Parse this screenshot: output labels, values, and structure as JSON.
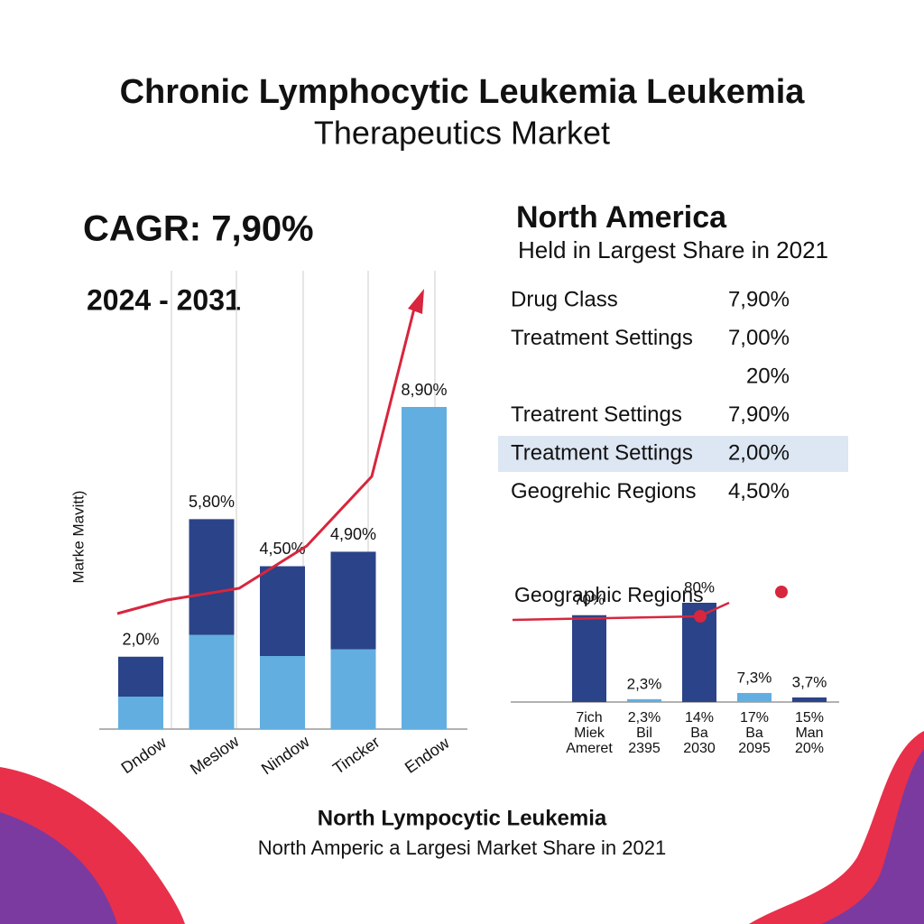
{
  "header": {
    "title": [
      "Chronic Lymphocytic Leukemia Leukemia",
      "Therapeutics Market"
    ]
  },
  "cagr": {
    "label": "CAGR: 7,90%",
    "period": "2024 - 2031"
  },
  "region": {
    "title": "North America",
    "subtitle": "Held in Largest Share in 2021"
  },
  "table": {
    "highlight": 4,
    "rows": [
      {
        "label": "Drug Class",
        "value": "7,90%"
      },
      {
        "label": "Treatment Settings",
        "value": "7,00%"
      },
      {
        "value": "20%"
      },
      {
        "label": "Treatrent Settings",
        "value": "7,90%"
      },
      {
        "label": "Treatment Settings",
        "value": "2,00%"
      },
      {
        "label": "Geogrehic Regions",
        "value": "4,50%"
      }
    ]
  },
  "chart_data": [
    {
      "type": "bar",
      "y_label": "Marke Mavitt)",
      "categories": [
        "Dndow",
        "Meslow",
        "Nindow",
        "Tincker",
        "Endow"
      ],
      "values": [
        2.0,
        5.8,
        4.5,
        4.9,
        8.9
      ],
      "value_labels": [
        "2,0%",
        "5,80%",
        "4,50%",
        "4,90%",
        "8,90%"
      ],
      "colors": [
        "#2b4388",
        "#2b4388",
        "#2b4388",
        "#2b4388",
        "#62aee0"
      ],
      "lower_color": "#62aee0"
    },
    {
      "type": "bar",
      "title": "Geographic Regions",
      "categories": [
        [
          "7ich",
          "Miek",
          "Ameret"
        ],
        [
          "2,3%",
          "Bil",
          "2395"
        ],
        [
          "14%",
          "Ba",
          "2030"
        ],
        [
          "17%",
          "Ba",
          "2095"
        ],
        [
          "15%",
          "Man",
          "20%"
        ]
      ],
      "values": [
        70,
        2.3,
        80,
        7.3,
        3.7
      ],
      "value_labels": [
        "70%",
        "2,3%",
        "80%",
        "7,3%",
        "3,7%"
      ],
      "colors": [
        "#2b4388",
        "#62aee0",
        "#2b4388",
        "#62aee0",
        "#2b4388"
      ]
    }
  ],
  "footer": {
    "title": "North Lympocytic Leukemia",
    "subtitle": "North Amperic a Largesi Market Share in 2021"
  }
}
